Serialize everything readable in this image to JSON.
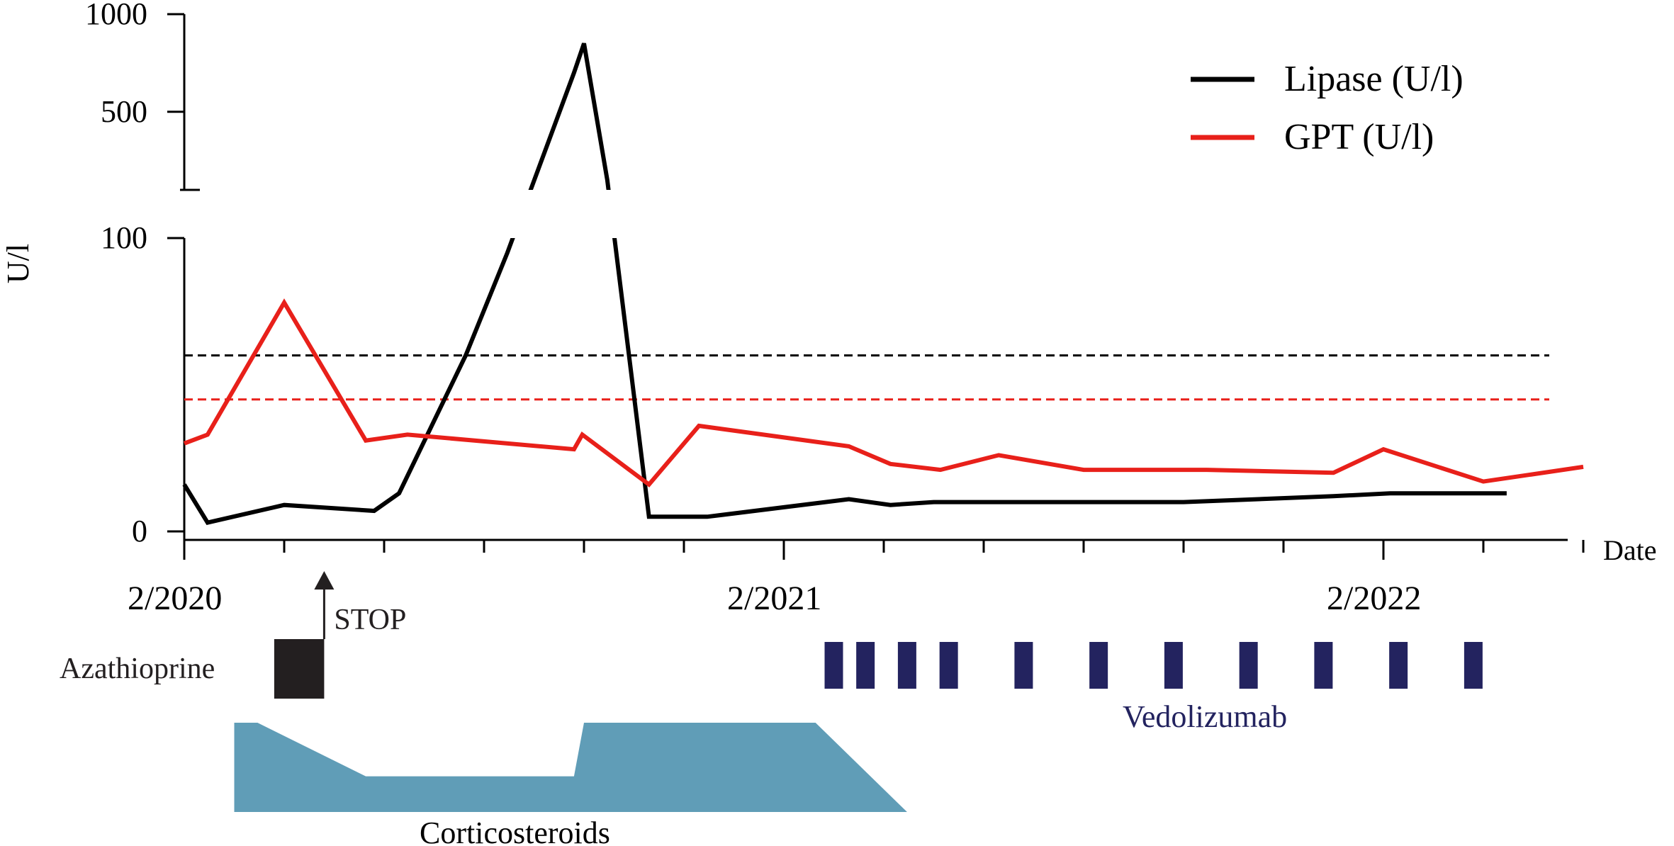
{
  "chart_data": {
    "type": "line",
    "title": "",
    "ylabel": "U/l",
    "xlabel": "Date",
    "x_axis": {
      "start": "2020-02",
      "end": "2022-06",
      "tick_labels": [
        {
          "month": "2020-02",
          "label": "2/2020"
        },
        {
          "month": "2021-02",
          "label": "2/2021"
        },
        {
          "month": "2022-02",
          "label": "2/2022"
        }
      ]
    },
    "y_axis": {
      "broken": true,
      "lower_range": [
        0,
        100
      ],
      "upper_range": [
        100,
        1000
      ],
      "tick_labels": [
        "0",
        "100",
        "500",
        "1000"
      ]
    },
    "grid": false,
    "legend_position": "top-right",
    "series": [
      {
        "name": "Lipase (U/l)",
        "color": "#000000",
        "reference_line": 60,
        "points": [
          [
            "2020-02-01",
            16
          ],
          [
            "2020-02-15",
            3
          ],
          [
            "2020-04-01",
            9
          ],
          [
            "2020-05-25",
            7
          ],
          [
            "2020-06-10",
            13
          ],
          [
            "2020-07-20",
            60
          ],
          [
            "2020-08-15",
            95
          ],
          [
            "2020-09-25",
            700
          ],
          [
            "2020-10-01",
            850
          ],
          [
            "2020-10-15",
            150
          ],
          [
            "2020-11-10",
            5
          ],
          [
            "2020-12-15",
            5
          ],
          [
            "2021-03-10",
            11
          ],
          [
            "2021-04-05",
            9
          ],
          [
            "2021-05-01",
            10
          ],
          [
            "2021-10-01",
            10
          ],
          [
            "2022-01-01",
            12
          ],
          [
            "2022-02-05",
            13
          ],
          [
            "2022-04-15",
            13
          ]
        ]
      },
      {
        "name": "GPT (U/l)",
        "color": "#e8201a",
        "reference_line": 45,
        "points": [
          [
            "2020-02-01",
            30
          ],
          [
            "2020-02-15",
            33
          ],
          [
            "2020-04-01",
            78
          ],
          [
            "2020-05-20",
            31
          ],
          [
            "2020-06-15",
            33
          ],
          [
            "2020-09-25",
            28
          ],
          [
            "2020-09-30",
            33
          ],
          [
            "2020-11-10",
            16
          ],
          [
            "2020-12-10",
            36
          ],
          [
            "2021-03-10",
            29
          ],
          [
            "2021-04-05",
            23
          ],
          [
            "2021-05-05",
            21
          ],
          [
            "2021-06-10",
            26
          ],
          [
            "2021-08-01",
            21
          ],
          [
            "2021-10-15",
            21
          ],
          [
            "2022-01-01",
            20
          ],
          [
            "2022-02-01",
            28
          ],
          [
            "2022-04-01",
            17
          ],
          [
            "2022-06-01",
            22
          ]
        ]
      }
    ],
    "treatments": [
      {
        "name": "Azathioprine",
        "color": "#231f20",
        "label_position": "left",
        "periods": [
          [
            "2020-03-25",
            "2020-04-25"
          ]
        ],
        "stop_label": "STOP",
        "stop_month": "2020-04-25"
      },
      {
        "name": "Vedolizumab",
        "color": "#23235f",
        "label_position": "below",
        "infusion_months": [
          "2021-03-01",
          "2021-03-20",
          "2021-04-15",
          "2021-05-10",
          "2021-06-25",
          "2021-08-10",
          "2021-09-25",
          "2021-11-10",
          "2021-12-25",
          "2022-02-10",
          "2022-03-25"
        ]
      },
      {
        "name": "Corticosteroids",
        "color": "#609db7",
        "label_position": "below",
        "dose_profile": [
          [
            "2020-03-01",
            1.0
          ],
          [
            "2020-03-15",
            1.0
          ],
          [
            "2020-05-20",
            0.4
          ],
          [
            "2020-09-25",
            0.4
          ],
          [
            "2020-10-01",
            1.0
          ],
          [
            "2021-02-20",
            1.0
          ],
          [
            "2021-04-15",
            0.0
          ]
        ]
      }
    ]
  }
}
